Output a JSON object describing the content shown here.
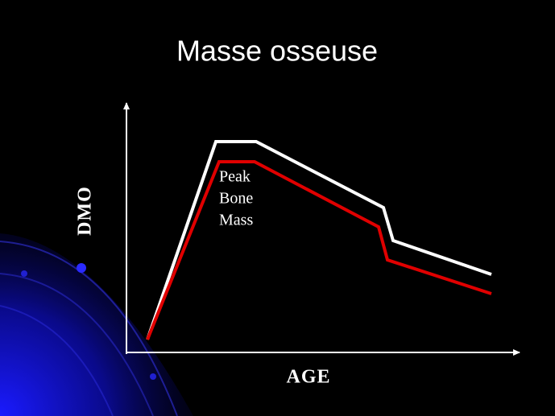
{
  "title": "Masse osseuse",
  "y_axis_label": "DMO",
  "x_axis_label": "AGE",
  "annotation": {
    "lines": [
      "Peak",
      "Bone",
      "Mass"
    ]
  }
}
